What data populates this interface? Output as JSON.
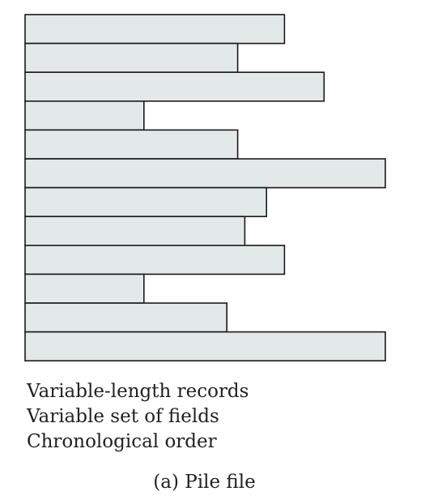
{
  "diagram": {
    "record_fill": "#e3e8e8",
    "record_stroke": "#1a1a1a",
    "records": [
      {
        "length": 0.72
      },
      {
        "length": 0.59
      },
      {
        "length": 0.83
      },
      {
        "length": 0.33
      },
      {
        "length": 0.59
      },
      {
        "length": 1.0
      },
      {
        "length": 0.67
      },
      {
        "length": 0.61
      },
      {
        "length": 0.72
      },
      {
        "length": 0.33
      },
      {
        "length": 0.56
      },
      {
        "length": 1.0
      }
    ]
  },
  "notes": {
    "line1": "Variable-length records",
    "line2": "Variable set of fields",
    "line3": "Chronological order"
  },
  "caption": "(a) Pile file"
}
